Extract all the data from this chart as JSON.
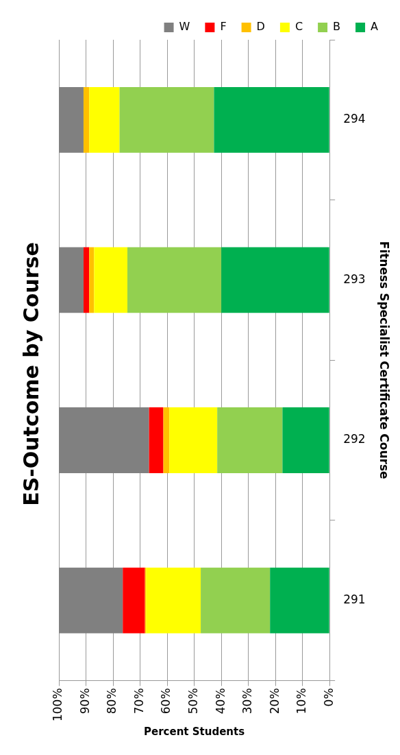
{
  "chart_data": {
    "type": "bar",
    "title": "ES-Outcome by Course",
    "ylabel": "Fitness Specialist Certificate Course",
    "xlabel": "Percent Students",
    "categories": [
      "294",
      "293",
      "292",
      "291"
    ],
    "stacked": true,
    "orientation": "horizontal",
    "series": [
      {
        "name": "A",
        "color": "#00b050",
        "values": [
          42.7,
          40,
          17.4,
          22
        ]
      },
      {
        "name": "B",
        "color": "#92d050",
        "values": [
          34.9,
          34.7,
          24.1,
          25.6
        ]
      },
      {
        "name": "C",
        "color": "#ffff00",
        "values": [
          11.2,
          12.3,
          17.7,
          20.2
        ]
      },
      {
        "name": "D",
        "color": "#ffc000",
        "values": [
          2.1,
          1.8,
          2.2,
          0.4
        ]
      },
      {
        "name": "F",
        "color": "#ff0000",
        "values": [
          0,
          2.1,
          5.3,
          8.2
        ]
      },
      {
        "name": "W",
        "color": "#808080",
        "values": [
          9.1,
          9.1,
          33.3,
          23.6
        ]
      }
    ],
    "xlim": [
      100,
      0
    ],
    "xticks": [
      {
        "value": 100,
        "label": "100%"
      },
      {
        "value": 90,
        "label": "90%"
      },
      {
        "value": 80,
        "label": "80%"
      },
      {
        "value": 70,
        "label": "70%"
      },
      {
        "value": 60,
        "label": "60%"
      },
      {
        "value": 50,
        "label": "50%"
      },
      {
        "value": 40,
        "label": "40%"
      },
      {
        "value": 30,
        "label": "30%"
      },
      {
        "value": 20,
        "label": "20%"
      },
      {
        "value": 10,
        "label": "10%"
      },
      {
        "value": 0,
        "label": "0%"
      }
    ],
    "grid": "x",
    "legend": "top"
  }
}
